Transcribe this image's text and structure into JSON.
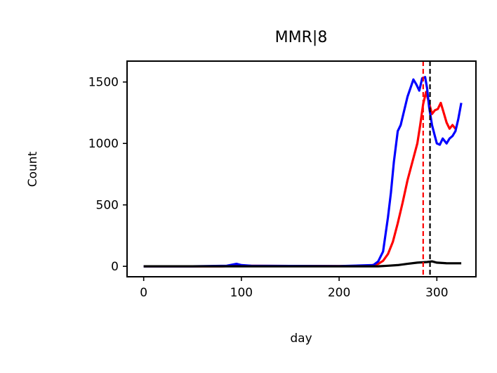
{
  "chart_data": {
    "type": "line",
    "title": "MMR|8",
    "xlabel": "day",
    "ylabel": "Count",
    "xlim": [
      -17,
      340
    ],
    "ylim": [
      -85,
      1670
    ],
    "xticks": [
      0,
      100,
      200,
      300
    ],
    "yticks": [
      0,
      500,
      1000,
      1500
    ],
    "grid": false,
    "legend": "none",
    "series": [
      {
        "color": "#ff0000",
        "x": [
          0,
          50,
          80,
          95,
          105,
          150,
          200,
          230,
          240,
          245,
          250,
          255,
          260,
          265,
          270,
          275,
          280,
          283,
          286,
          289,
          292,
          295,
          298,
          301,
          304,
          307,
          310,
          313,
          316,
          319
        ],
        "values": [
          0,
          0,
          0,
          5,
          5,
          3,
          2,
          3,
          20,
          45,
          100,
          200,
          350,
          520,
          700,
          850,
          1000,
          1150,
          1320,
          1420,
          1330,
          1240,
          1270,
          1280,
          1330,
          1250,
          1170,
          1120,
          1150,
          1120
        ]
      },
      {
        "color": "#0000ff",
        "x": [
          0,
          50,
          85,
          95,
          100,
          110,
          150,
          200,
          235,
          240,
          245,
          250,
          253,
          256,
          260,
          263,
          266,
          270,
          273,
          276,
          279,
          282,
          285,
          288,
          290,
          292,
          295,
          298,
          300,
          303,
          306,
          310,
          313,
          316,
          319,
          322,
          325
        ],
        "values": [
          0,
          0,
          5,
          20,
          10,
          5,
          3,
          2,
          10,
          40,
          120,
          400,
          600,
          850,
          1100,
          1150,
          1250,
          1380,
          1450,
          1520,
          1480,
          1430,
          1530,
          1540,
          1450,
          1300,
          1150,
          1060,
          1000,
          990,
          1040,
          1000,
          1040,
          1060,
          1100,
          1200,
          1330
        ]
      },
      {
        "color": "#000000",
        "x": [
          0,
          100,
          200,
          240,
          250,
          260,
          270,
          280,
          290,
          295,
          300,
          310,
          325
        ],
        "values": [
          0,
          0,
          0,
          0,
          5,
          10,
          20,
          30,
          35,
          40,
          30,
          25,
          25
        ]
      }
    ],
    "vlines": [
      {
        "x": 286,
        "color": "#ff0000",
        "style": "dashed"
      },
      {
        "x": 293,
        "color": "#000000",
        "style": "dashed"
      }
    ]
  }
}
